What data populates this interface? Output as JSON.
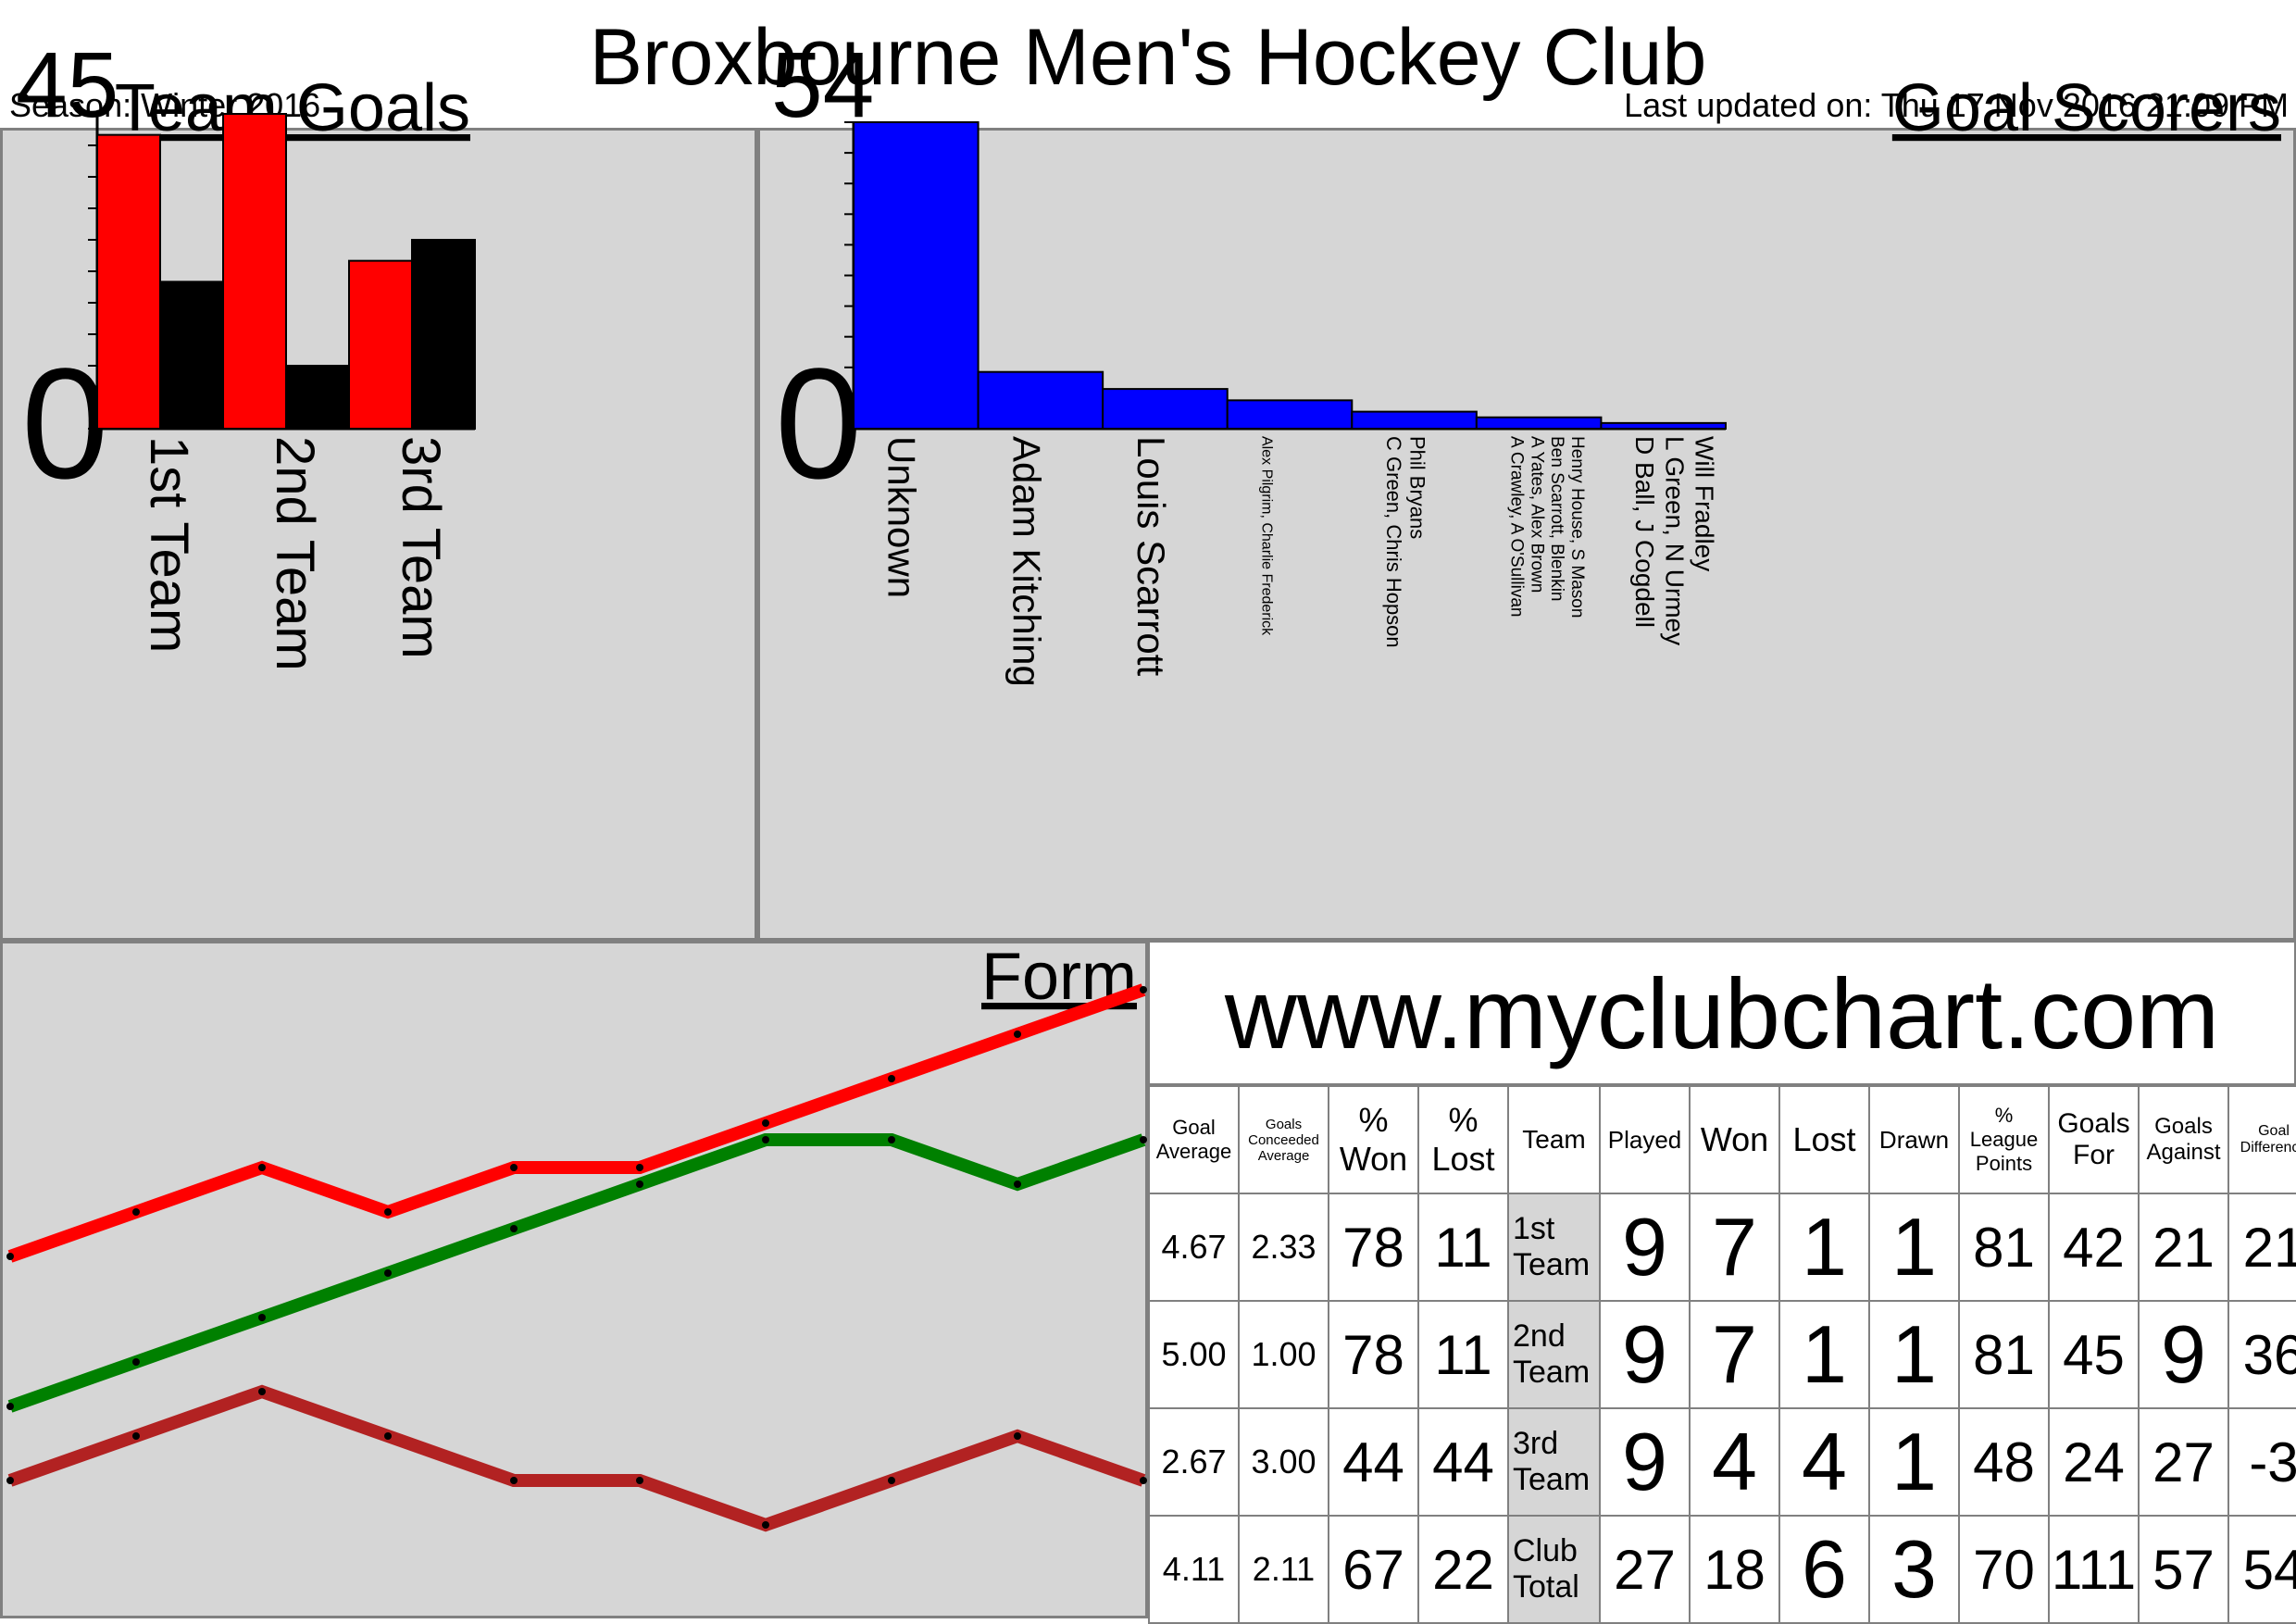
{
  "header": {
    "title": "Broxbourne Men's Hockey Club",
    "season": "Season: Winter 2016",
    "last_updated": "Last updated on: Thu 17 Nov 2016 21:09 PM"
  },
  "site": "www.myclubchart.com",
  "colors": {
    "goals_for": "#ff0000",
    "goals_against": "#000000",
    "scorers": "#0000ff",
    "form_1st": "#ff0000",
    "form_2nd": "#008000",
    "form_3rd": "#b22222",
    "panel": "#d6d6d6"
  },
  "chart_data": [
    {
      "type": "bar",
      "title": "Team Goals",
      "ymax_label": "45",
      "ymin_label": "0",
      "ylim": [
        0,
        45
      ],
      "categories": [
        "1st Team",
        "2nd Team",
        "3rd Team"
      ],
      "series": [
        {
          "values": [
            42,
            45,
            24
          ]
        },
        {
          "values": [
            21,
            9,
            27
          ]
        }
      ]
    },
    {
      "type": "bar",
      "title": "Goal Scorers",
      "ymax_label": "54",
      "ymin_label": "0",
      "ylim": [
        0,
        54
      ],
      "categories": [
        [
          "Unknown"
        ],
        [
          "Adam Kitching"
        ],
        [
          "Louis Scarrott"
        ],
        [
          "Alex Pilgrim, Charlie Frederick"
        ],
        [
          "Phil Bryans",
          "C Green, Chris Hopson"
        ],
        [
          "Henry House, S Mason",
          "Ben Scarrott, Blenkin",
          "A Yates, Alex Brown",
          "A Crawley, A O'Sullivan"
        ],
        [
          "Will Fradley",
          "L Green, N Urmey",
          "D Ball, J Cogdell"
        ]
      ],
      "values": [
        54,
        10,
        7,
        5,
        3,
        2,
        1
      ]
    },
    {
      "type": "line",
      "title": "Form",
      "x": [
        0,
        1,
        2,
        3,
        4,
        5,
        6,
        7,
        8,
        9
      ],
      "series": [
        {
          "values": [
            0,
            1,
            2,
            1,
            2,
            2,
            3,
            4,
            5,
            6
          ]
        },
        {
          "values": [
            0,
            1,
            2,
            3,
            4,
            5,
            6,
            6,
            5,
            6
          ]
        },
        {
          "values": [
            2,
            3,
            4,
            3,
            2,
            2,
            1,
            2,
            3,
            2
          ]
        }
      ]
    }
  ],
  "table": {
    "headers": [
      "Goal Average",
      "Goals Conceeded Average",
      "% Won",
      "% Lost",
      "Team",
      "Played",
      "Won",
      "Lost",
      "Drawn",
      "% League Points",
      "Goals For",
      "Goals Against",
      "Goal Difference"
    ],
    "rows": [
      [
        "4.67",
        "2.33",
        "78",
        "11",
        "1st Team",
        "9",
        "7",
        "1",
        "1",
        "81",
        "42",
        "21",
        "21"
      ],
      [
        "5.00",
        "1.00",
        "78",
        "11",
        "2nd Team",
        "9",
        "7",
        "1",
        "1",
        "81",
        "45",
        "9",
        "36"
      ],
      [
        "2.67",
        "3.00",
        "44",
        "44",
        "3rd Team",
        "9",
        "4",
        "4",
        "1",
        "48",
        "24",
        "27",
        "-3"
      ],
      [
        "4.11",
        "2.11",
        "67",
        "22",
        "Club Total",
        "27",
        "18",
        "6",
        "3",
        "70",
        "111",
        "57",
        "54"
      ]
    ]
  }
}
